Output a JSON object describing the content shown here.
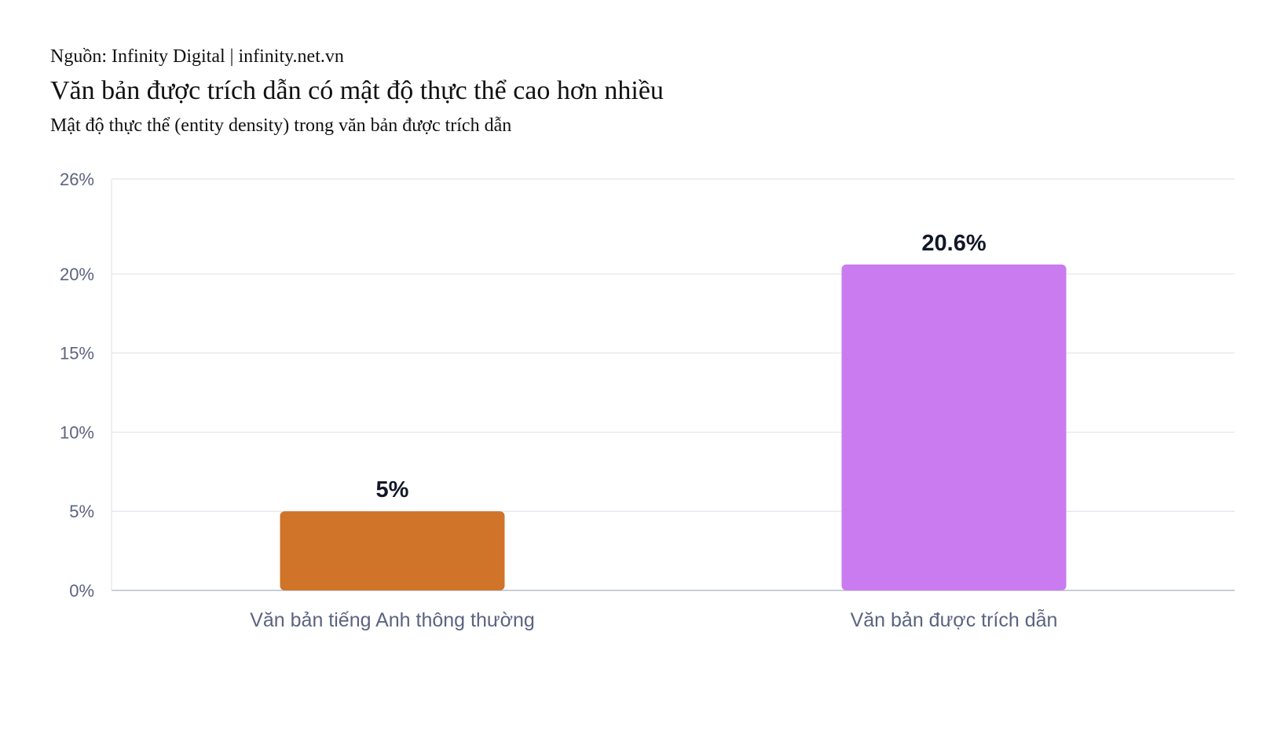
{
  "header": {
    "source": "Nguồn: Infinity Digital | infinity.net.vn",
    "title": "Văn bản được trích dẫn có mật độ thực thể cao hơn nhiều",
    "subtitle": "Mật độ thực thể (entity density) trong văn bản được trích dẫn"
  },
  "chart_data": {
    "type": "bar",
    "title": "Văn bản được trích dẫn có mật độ thực thể cao hơn nhiều",
    "subtitle": "Mật độ thực thể (entity density) trong văn bản được trích dẫn",
    "categories": [
      "Văn bản tiếng Anh thông thường",
      "Văn bản được trích dẫn"
    ],
    "values": [
      5,
      20.6
    ],
    "data_labels": [
      "5%",
      "20.6%"
    ],
    "colors": [
      "#cf7429",
      "#c97bef"
    ],
    "ylim": [
      0,
      26
    ],
    "yticks": [
      0,
      5,
      10,
      15,
      20,
      26
    ],
    "ytick_labels": [
      "0%",
      "5%",
      "10%",
      "15%",
      "20%",
      "26%"
    ],
    "xlabel": "",
    "ylabel": "",
    "grid": true,
    "legend": "none"
  }
}
